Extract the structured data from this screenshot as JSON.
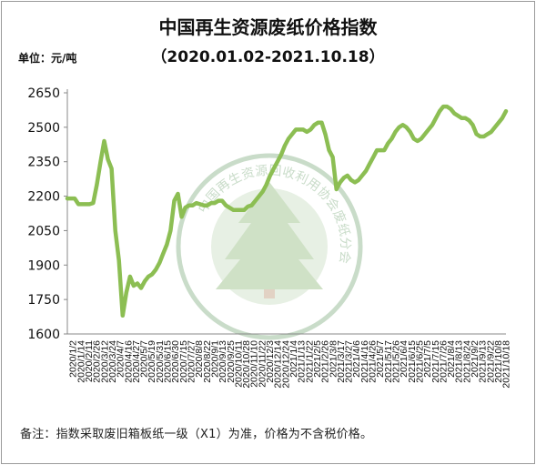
{
  "title": "中国再生资源废纸价格指数",
  "subtitle": "（2020.01.02-2021.10.18）",
  "unit_label": "单位：元/吨",
  "note": "备注：指数采取废旧箱板纸一级（X1）为准，价格为不含税价格。",
  "watermark": "中国再生资源回收利用协会废纸分会",
  "colors": {
    "line": "#8cbe53",
    "watermark": "#c9dcc9",
    "axis": "#888888"
  },
  "chart_data": {
    "type": "line",
    "title": "中国再生资源废纸价格指数",
    "ylabel": "单位：元/吨",
    "ylim": [
      1600,
      2650
    ],
    "yticks": [
      1600,
      1750,
      1900,
      2050,
      2200,
      2350,
      2500,
      2650
    ],
    "grid": false,
    "legend": "none",
    "xtick_labels": [
      "2020/1/2",
      "2020/1/14",
      "2020/2/11",
      "2020/2/26",
      "2020/3/12",
      "2020/3/24",
      "2020/4/7",
      "2020/4/16",
      "2020/4/27",
      "2020/5/7",
      "2020/5/19",
      "2020/5/31",
      "2020/6/15",
      "2020/6/30",
      "2020/7/15",
      "2020/7/27",
      "2020/8/8",
      "2020/8/22",
      "2020/9/1",
      "2020/9/13",
      "2020/9/25",
      "2020/10/11",
      "2020/10/28",
      "2020/11/10",
      "2020/11/22",
      "2020/12/3",
      "2020/12/14",
      "2020/12/24",
      "2021/1/4",
      "2021/1/13",
      "2021/1/22",
      "2021/2/5",
      "2021/2/26",
      "2021/3/8",
      "2021/3/17",
      "2021/3/27",
      "2021/4/6",
      "2021/4/16",
      "2021/4/26",
      "2021/5/7",
      "2021/5/17",
      "2021/5/26",
      "2021/6/4",
      "2021/6/15",
      "2021/6/25",
      "2021/7/5",
      "2021/7/15",
      "2021/7/26",
      "2021/8/4",
      "2021/8/13",
      "2021/8/24",
      "2021/9/2",
      "2021/9/13",
      "2021/9/22",
      "2021/10/8",
      "2021/10/18"
    ],
    "series": [
      {
        "values": [
          2190,
          2190,
          2190,
          2165,
          2165,
          2165,
          2165,
          2170,
          2250,
          2350,
          2440,
          2360,
          2320,
          2050,
          1920,
          1680,
          1780,
          1850,
          1810,
          1820,
          1800,
          1830,
          1850,
          1860,
          1880,
          1910,
          1950,
          1990,
          2050,
          2180,
          2210,
          2110,
          2150,
          2160,
          2160,
          2170,
          2165,
          2160,
          2160,
          2170,
          2170,
          2180,
          2180,
          2160,
          2150,
          2140,
          2140,
          2140,
          2140,
          2155,
          2160,
          2180,
          2200,
          2220,
          2250,
          2290,
          2320,
          2350,
          2380,
          2420,
          2450,
          2470,
          2490,
          2490,
          2490,
          2480,
          2490,
          2510,
          2520,
          2520,
          2470,
          2400,
          2370,
          2230,
          2260,
          2280,
          2290,
          2270,
          2260,
          2270,
          2290,
          2310,
          2340,
          2370,
          2400,
          2400,
          2400,
          2430,
          2450,
          2480,
          2500,
          2510,
          2500,
          2480,
          2450,
          2440,
          2450,
          2470,
          2490,
          2510,
          2540,
          2570,
          2590,
          2590,
          2580,
          2560,
          2550,
          2540,
          2540,
          2530,
          2510,
          2470,
          2460,
          2460,
          2470,
          2480,
          2500,
          2520,
          2540,
          2570
        ]
      }
    ]
  }
}
